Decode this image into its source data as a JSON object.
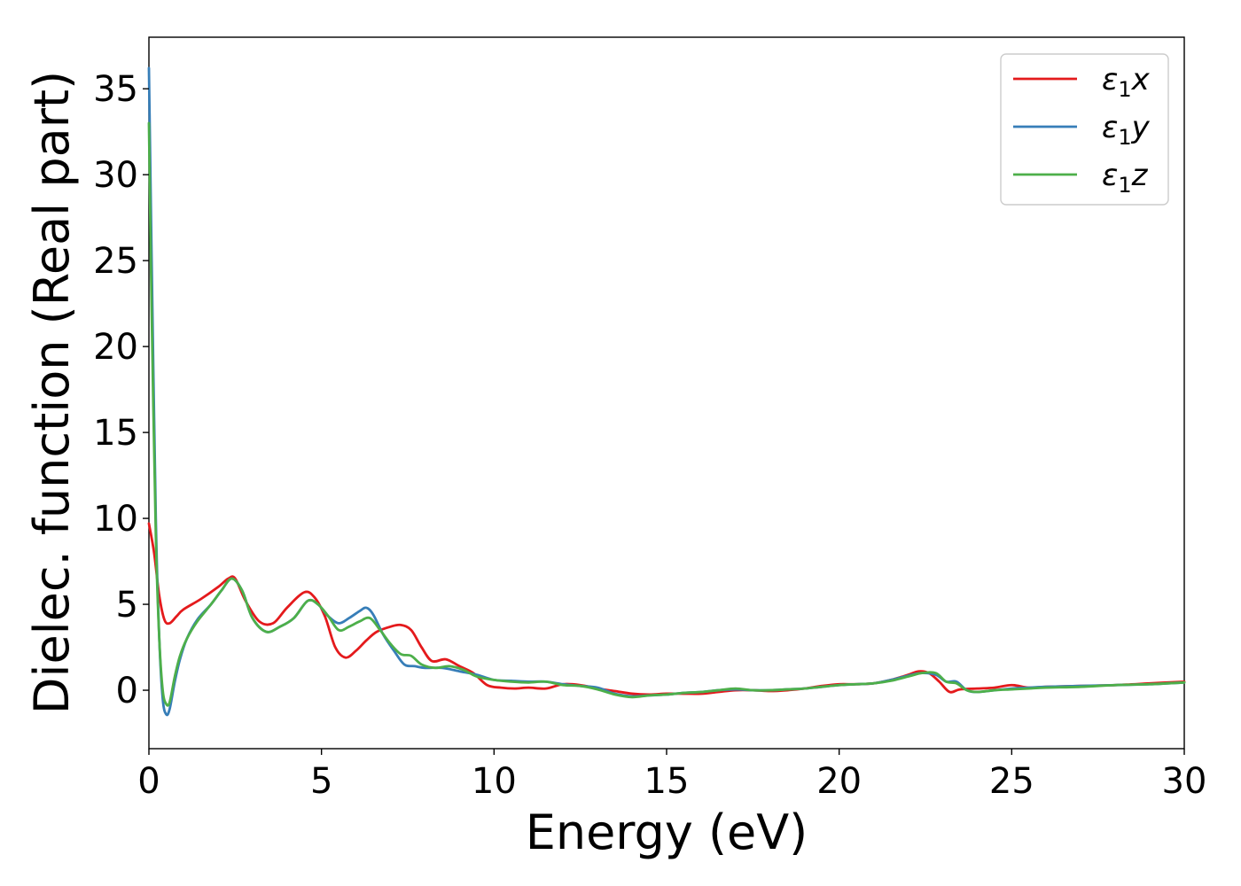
{
  "chart_data": {
    "type": "line",
    "title": "",
    "xlabel": "Energy (eV)",
    "ylabel": "Dielec. function (Real part)",
    "xlim": [
      0,
      30
    ],
    "ylim": [
      -3.4,
      38
    ],
    "xticks": [
      0,
      5,
      10,
      15,
      20,
      25,
      30
    ],
    "yticks": [
      0,
      5,
      10,
      15,
      20,
      25,
      30,
      35
    ],
    "grid": false,
    "legend_position": "top-right",
    "series": [
      {
        "name": "ε₁x",
        "legend_base": "ε",
        "legend_sub": "1",
        "legend_suffix": "x",
        "color": "#e41a1c",
        "x": [
          0,
          0.15,
          0.3,
          0.45,
          0.6,
          0.8,
          1.0,
          1.5,
          2.0,
          2.3,
          2.5,
          2.8,
          3.2,
          3.6,
          4.0,
          4.5,
          4.8,
          5.1,
          5.4,
          5.7,
          6.0,
          6.3,
          6.6,
          7.0,
          7.3,
          7.6,
          7.9,
          8.2,
          8.6,
          9.0,
          9.4,
          9.8,
          10.2,
          10.6,
          11.0,
          11.5,
          12.0,
          12.5,
          13.0,
          13.5,
          14.0,
          14.5,
          15.0,
          15.5,
          16.0,
          16.5,
          17.0,
          17.5,
          18.0,
          18.5,
          19.0,
          19.5,
          20.0,
          20.5,
          21.0,
          21.5,
          22.0,
          22.3,
          22.6,
          22.9,
          23.2,
          23.5,
          24.0,
          24.5,
          25.0,
          25.5,
          26.0,
          27.0,
          28.0,
          29.0,
          30.0
        ],
        "values": [
          9.7,
          8.0,
          5.5,
          4.1,
          3.9,
          4.3,
          4.7,
          5.3,
          6.0,
          6.5,
          6.5,
          5.2,
          4.0,
          3.9,
          4.8,
          5.7,
          5.4,
          4.3,
          2.5,
          1.9,
          2.3,
          2.9,
          3.4,
          3.7,
          3.8,
          3.5,
          2.5,
          1.7,
          1.8,
          1.4,
          1.0,
          0.3,
          0.15,
          0.1,
          0.15,
          0.1,
          0.35,
          0.3,
          0.1,
          -0.05,
          -0.2,
          -0.25,
          -0.2,
          -0.2,
          -0.2,
          -0.1,
          0.0,
          0.0,
          -0.05,
          0.0,
          0.1,
          0.25,
          0.35,
          0.35,
          0.4,
          0.6,
          0.9,
          1.1,
          1.0,
          0.5,
          -0.1,
          0.05,
          0.1,
          0.15,
          0.3,
          0.15,
          0.2,
          0.25,
          0.3,
          0.4,
          0.5
        ]
      },
      {
        "name": "ε₁y",
        "legend_base": "ε",
        "legend_sub": "1",
        "legend_suffix": "y",
        "color": "#377eb8",
        "x": [
          0,
          0.08,
          0.2,
          0.3,
          0.4,
          0.5,
          0.6,
          0.75,
          0.9,
          1.1,
          1.4,
          1.8,
          2.1,
          2.4,
          2.7,
          3.0,
          3.4,
          3.8,
          4.2,
          4.6,
          4.9,
          5.2,
          5.5,
          5.8,
          6.1,
          6.3,
          6.5,
          6.8,
          7.1,
          7.4,
          7.7,
          8.0,
          8.5,
          9.0,
          9.5,
          10.0,
          10.5,
          11.0,
          11.5,
          12.0,
          12.5,
          13.0,
          13.5,
          14.0,
          14.5,
          15.0,
          15.5,
          16.0,
          16.5,
          17.0,
          17.5,
          18.0,
          18.5,
          19.0,
          19.5,
          20.0,
          20.5,
          21.0,
          21.5,
          22.0,
          22.4,
          22.8,
          23.1,
          23.4,
          23.7,
          24.0,
          24.5,
          25.0,
          25.5,
          26.0,
          27.0,
          28.0,
          29.0,
          30.0
        ],
        "values": [
          36.2,
          25.0,
          10.0,
          3.0,
          -0.5,
          -1.4,
          -1.1,
          0.5,
          1.8,
          3.0,
          4.1,
          5.0,
          5.8,
          6.5,
          5.8,
          4.2,
          3.4,
          3.7,
          4.2,
          5.2,
          5.0,
          4.3,
          3.9,
          4.2,
          4.6,
          4.8,
          4.4,
          3.2,
          2.3,
          1.5,
          1.4,
          1.3,
          1.3,
          1.1,
          0.9,
          0.6,
          0.55,
          0.5,
          0.5,
          0.35,
          0.25,
          0.15,
          -0.2,
          -0.35,
          -0.3,
          -0.25,
          -0.15,
          -0.1,
          0.0,
          0.05,
          0.0,
          0.0,
          0.05,
          0.1,
          0.2,
          0.3,
          0.35,
          0.4,
          0.6,
          0.85,
          1.0,
          0.9,
          0.5,
          0.5,
          0.0,
          -0.1,
          0.0,
          0.1,
          0.15,
          0.2,
          0.25,
          0.3,
          0.35,
          0.45
        ]
      },
      {
        "name": "ε₁z",
        "legend_base": "ε",
        "legend_sub": "1",
        "legend_suffix": "z",
        "color": "#4daf4a",
        "x": [
          0,
          0.08,
          0.2,
          0.3,
          0.4,
          0.5,
          0.6,
          0.75,
          0.9,
          1.1,
          1.4,
          1.8,
          2.1,
          2.4,
          2.7,
          3.0,
          3.4,
          3.8,
          4.2,
          4.6,
          4.9,
          5.2,
          5.5,
          5.8,
          6.1,
          6.4,
          6.7,
          7.0,
          7.3,
          7.6,
          7.9,
          8.3,
          8.7,
          9.1,
          9.5,
          10.0,
          10.5,
          11.0,
          11.5,
          12.0,
          12.5,
          13.0,
          13.5,
          14.0,
          14.5,
          15.0,
          15.5,
          16.0,
          16.5,
          17.0,
          17.5,
          18.0,
          18.5,
          19.0,
          19.5,
          20.0,
          20.5,
          21.0,
          21.5,
          22.0,
          22.4,
          22.8,
          23.1,
          23.4,
          23.7,
          24.0,
          24.5,
          25.0,
          25.5,
          26.0,
          27.0,
          28.0,
          29.0,
          30.0
        ],
        "values": [
          33.0,
          22.0,
          9.0,
          3.0,
          0.0,
          -0.8,
          -0.7,
          0.8,
          2.0,
          3.0,
          4.0,
          5.0,
          5.8,
          6.5,
          5.8,
          4.2,
          3.4,
          3.7,
          4.2,
          5.2,
          5.0,
          4.3,
          3.5,
          3.7,
          4.0,
          4.2,
          3.5,
          2.7,
          2.1,
          2.0,
          1.5,
          1.3,
          1.4,
          1.2,
          0.8,
          0.6,
          0.5,
          0.45,
          0.5,
          0.3,
          0.25,
          0.05,
          -0.25,
          -0.4,
          -0.3,
          -0.25,
          -0.15,
          -0.1,
          0.0,
          0.1,
          0.0,
          0.0,
          0.05,
          0.1,
          0.2,
          0.3,
          0.35,
          0.4,
          0.55,
          0.8,
          1.0,
          1.0,
          0.5,
          0.4,
          0.0,
          -0.1,
          0.0,
          0.05,
          0.1,
          0.15,
          0.2,
          0.3,
          0.35,
          0.45
        ]
      }
    ]
  }
}
